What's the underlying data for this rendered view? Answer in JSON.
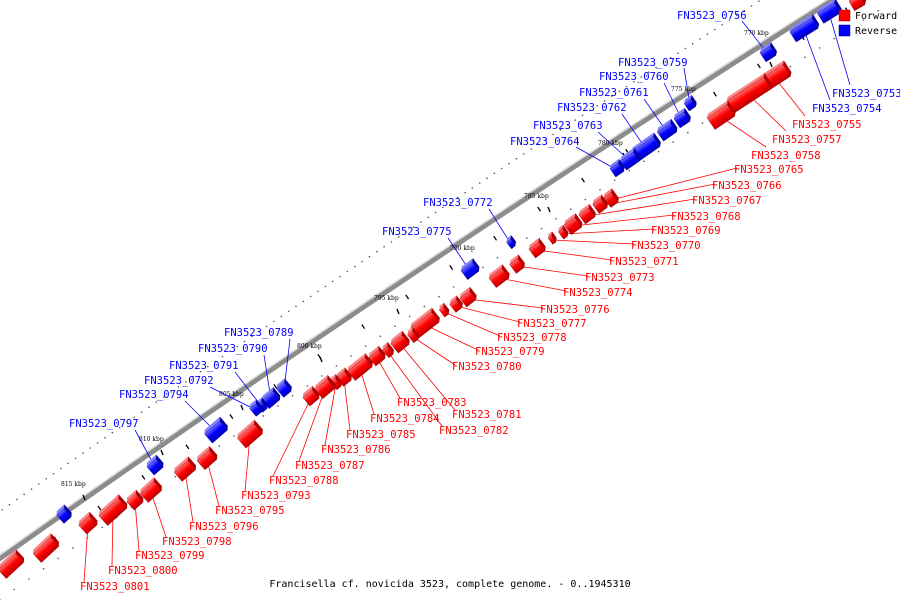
{
  "caption": "Francisella cf. novicida 3523, complete genome. - 0..1945310",
  "legend": [
    {
      "label": "Forward",
      "color": "#ff0000"
    },
    {
      "label": "Reverse",
      "color": "#0000ff"
    }
  ],
  "colors": {
    "forward": "#ff0000",
    "reverse": "#0000ff",
    "backbone": "#666666"
  },
  "scale_labels": [
    "770 kbp",
    "775 kbp",
    "780 kbp",
    "785 kbp",
    "790 kbp",
    "795 kbp",
    "800 kbp",
    "805 kbp",
    "810 kbp",
    "815 kbp"
  ],
  "genes": [
    {
      "name": "FN3523_0753",
      "strand": "reverse"
    },
    {
      "name": "FN3523_0754",
      "strand": "reverse"
    },
    {
      "name": "FN3523_0755",
      "strand": "forward"
    },
    {
      "name": "FN3523_0756",
      "strand": "reverse"
    },
    {
      "name": "FN3523_0757",
      "strand": "forward"
    },
    {
      "name": "FN3523_0758",
      "strand": "forward"
    },
    {
      "name": "FN3523_0759",
      "strand": "reverse"
    },
    {
      "name": "FN3523_0760",
      "strand": "reverse"
    },
    {
      "name": "FN3523_0761",
      "strand": "reverse"
    },
    {
      "name": "FN3523_0762",
      "strand": "reverse"
    },
    {
      "name": "FN3523_0763",
      "strand": "reverse"
    },
    {
      "name": "FN3523_0764",
      "strand": "reverse"
    },
    {
      "name": "FN3523_0765",
      "strand": "forward"
    },
    {
      "name": "FN3523_0766",
      "strand": "forward"
    },
    {
      "name": "FN3523_0767",
      "strand": "forward"
    },
    {
      "name": "FN3523_0768",
      "strand": "forward"
    },
    {
      "name": "FN3523_0769",
      "strand": "forward"
    },
    {
      "name": "FN3523_0770",
      "strand": "forward"
    },
    {
      "name": "FN3523_0771",
      "strand": "forward"
    },
    {
      "name": "FN3523_0772",
      "strand": "reverse"
    },
    {
      "name": "FN3523_0773",
      "strand": "forward"
    },
    {
      "name": "FN3523_0774",
      "strand": "forward"
    },
    {
      "name": "FN3523_0775",
      "strand": "reverse"
    },
    {
      "name": "FN3523_0776",
      "strand": "forward"
    },
    {
      "name": "FN3523_0777",
      "strand": "forward"
    },
    {
      "name": "FN3523_0778",
      "strand": "forward"
    },
    {
      "name": "FN3523_0779",
      "strand": "forward"
    },
    {
      "name": "FN3523_0780",
      "strand": "forward"
    },
    {
      "name": "FN3523_0781",
      "strand": "forward"
    },
    {
      "name": "FN3523_0782",
      "strand": "forward"
    },
    {
      "name": "FN3523_0783",
      "strand": "forward"
    },
    {
      "name": "FN3523_0784",
      "strand": "forward"
    },
    {
      "name": "FN3523_0785",
      "strand": "forward"
    },
    {
      "name": "FN3523_0786",
      "strand": "forward"
    },
    {
      "name": "FN3523_0787",
      "strand": "forward"
    },
    {
      "name": "FN3523_0788",
      "strand": "forward"
    },
    {
      "name": "FN3523_0789",
      "strand": "reverse"
    },
    {
      "name": "FN3523_0790",
      "strand": "reverse"
    },
    {
      "name": "FN3523_0791",
      "strand": "reverse"
    },
    {
      "name": "FN3523_0792",
      "strand": "reverse"
    },
    {
      "name": "FN3523_0793",
      "strand": "forward"
    },
    {
      "name": "FN3523_0794",
      "strand": "reverse"
    },
    {
      "name": "FN3523_0795",
      "strand": "forward"
    },
    {
      "name": "FN3523_0796",
      "strand": "forward"
    },
    {
      "name": "FN3523_0797",
      "strand": "reverse"
    },
    {
      "name": "FN3523_0798",
      "strand": "forward"
    },
    {
      "name": "FN3523_0799",
      "strand": "forward"
    },
    {
      "name": "FN3523_0800",
      "strand": "forward"
    },
    {
      "name": "FN3523_0801",
      "strand": "forward"
    }
  ]
}
